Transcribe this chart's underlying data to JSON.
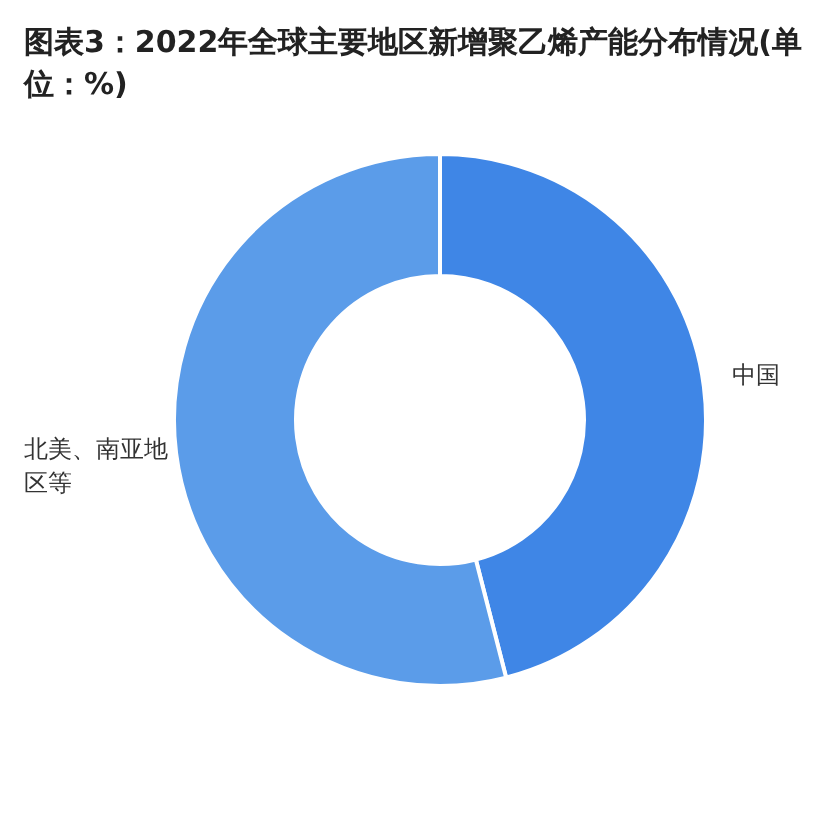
{
  "chart_data": {
    "type": "donut",
    "title": "图表3：2022年全球主要地区新增聚乙烯产能分布情况(单位：%)",
    "categories": [
      "中国",
      "北美、南亚地区等"
    ],
    "values": [
      46,
      54
    ],
    "colors": [
      "#3f86e6",
      "#5b9ce9"
    ]
  }
}
